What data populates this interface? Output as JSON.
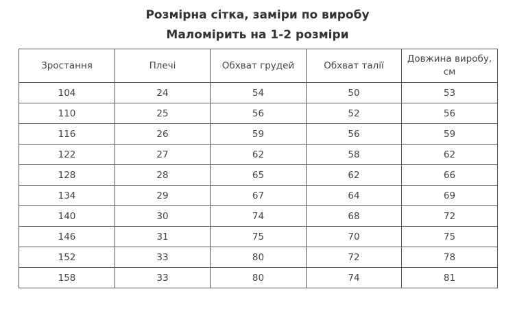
{
  "heading": {
    "line1": "Розмірна сітка, заміри по виробу",
    "line2": "Маломірить на 1-2 розміри"
  },
  "table": {
    "headers": [
      "Зростання",
      "Плечі",
      "Обхват грудей",
      "Обхват талії",
      "Довжина виробу, см"
    ],
    "rows": [
      [
        "104",
        "24",
        "54",
        "50",
        "53"
      ],
      [
        "110",
        "25",
        "56",
        "52",
        "56"
      ],
      [
        "116",
        "26",
        "59",
        "56",
        "59"
      ],
      [
        "122",
        "27",
        "62",
        "58",
        "62"
      ],
      [
        "128",
        "28",
        "65",
        "62",
        "66"
      ],
      [
        "134",
        "29",
        "67",
        "64",
        "69"
      ],
      [
        "140",
        "30",
        "74",
        "68",
        "72"
      ],
      [
        "146",
        "31",
        "75",
        "70",
        "75"
      ],
      [
        "152",
        "33",
        "80",
        "72",
        "78"
      ],
      [
        "158",
        "33",
        "80",
        "74",
        "81"
      ]
    ]
  }
}
